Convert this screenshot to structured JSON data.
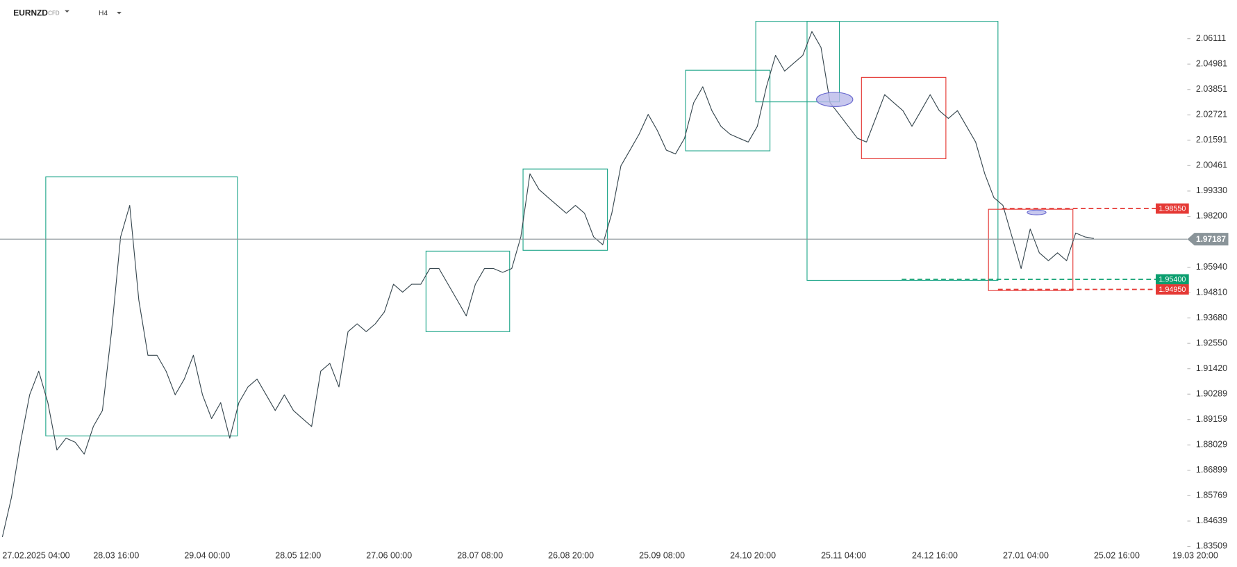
{
  "header": {
    "symbol": "EURNZD",
    "market": "CFD",
    "timeframe": "H4"
  },
  "chart_data": {
    "type": "line",
    "categories": [
      "27.02.2025  04:00",
      null,
      null,
      null,
      null,
      null,
      null,
      null,
      null,
      null,
      "28.03  16:00",
      null,
      null,
      null,
      null,
      null,
      null,
      null,
      null,
      null,
      "29.04  00:00",
      null,
      null,
      null,
      null,
      null,
      null,
      null,
      null,
      null,
      "28.05  12:00",
      null,
      null,
      null,
      null,
      null,
      null,
      null,
      null,
      null,
      "27.06  00:00",
      null,
      null,
      null,
      null,
      null,
      null,
      null,
      null,
      null,
      "28.07  08:00",
      null,
      null,
      null,
      null,
      null,
      null,
      null,
      null,
      null,
      "26.08  20:00",
      null,
      null,
      null,
      null,
      null,
      null,
      null,
      null,
      null,
      "25.09  08:00",
      null,
      null,
      null,
      null,
      null,
      null,
      null,
      null,
      null,
      "24.10  20:00",
      null,
      null,
      null,
      null,
      null,
      null,
      null,
      null,
      null,
      "25.11  04:00",
      null,
      null,
      null,
      null,
      null,
      null,
      null,
      null,
      null,
      "24.12  16:00",
      null,
      null,
      null,
      null,
      null,
      null,
      null,
      null,
      null,
      "27.01  04:00",
      null,
      null,
      null,
      null,
      null,
      null,
      null,
      null,
      null,
      "25.02  16:00",
      null,
      null,
      null,
      null,
      null,
      null,
      null,
      null,
      null,
      "19.03  20:00"
    ],
    "series": [
      {
        "name": "EURNZD",
        "color": "#37474f",
        "values": [
          1.8393,
          1.8569,
          1.8815,
          1.9026,
          1.9131,
          1.8991,
          1.878,
          1.8833,
          1.8815,
          1.8762,
          1.8885,
          1.8956,
          1.9307,
          1.9729,
          1.9869,
          1.9448,
          1.9202,
          1.9202,
          1.9131,
          1.9026,
          1.9096,
          1.9202,
          1.9026,
          1.892,
          1.8991,
          1.8833,
          1.8991,
          1.9061,
          1.9096,
          1.9026,
          1.8956,
          1.9026,
          1.8956,
          1.892,
          1.8885,
          1.9131,
          1.9166,
          1.9061,
          1.9307,
          1.9342,
          1.9307,
          1.9342,
          1.9395,
          1.9518,
          1.9483,
          1.9518,
          1.9518,
          1.9588,
          1.9588,
          1.9518,
          1.9448,
          1.9377,
          1.9518,
          1.9588,
          1.9588,
          1.9571,
          1.9588,
          1.9729,
          2.001,
          1.994,
          1.9904,
          1.9869,
          1.9834,
          1.9869,
          1.9834,
          1.9729,
          1.9694,
          1.9834,
          2.0045,
          2.0115,
          2.0186,
          2.0274,
          2.0203,
          2.0115,
          2.0098,
          2.0168,
          2.0326,
          2.0397,
          2.0291,
          2.0221,
          2.0186,
          2.0168,
          2.0151,
          2.0221,
          2.0397,
          2.0537,
          2.0467,
          2.0502,
          2.0537,
          2.0643,
          2.0572,
          2.0326,
          2.0274,
          2.0221,
          2.0168,
          2.0151,
          2.0256,
          2.0362,
          2.0326,
          2.0291,
          2.0221,
          2.0291,
          2.0362,
          2.0291,
          2.0256,
          2.0291,
          2.0221,
          2.0151,
          2.001,
          1.9904,
          1.9869,
          1.9729,
          1.9588,
          1.9764,
          1.9658,
          1.9623,
          1.9658,
          1.9623,
          1.9746,
          1.9729,
          1.9722,
          null,
          null,
          null,
          null,
          null,
          null,
          null,
          null,
          null,
          null
        ]
      }
    ],
    "ylim": [
      1.83509,
      2.0713
    ],
    "yticks": [
      1.83509,
      1.84639,
      1.85769,
      1.86899,
      1.88029,
      1.89159,
      1.90289,
      {
        "value": 1.9142,
        "label": "1.91420"
      },
      {
        "value": 1.9255,
        "label": "1.92550"
      },
      {
        "value": 1.9368,
        "label": "1.93680"
      },
      {
        "value": 1.9481,
        "label": "1.94810"
      },
      {
        "value": 1.9594,
        "label": "1.95940"
      },
      {
        "value": 1.982,
        "label": "1.98200"
      },
      {
        "value": 1.9933,
        "label": "1.99330"
      },
      2.00461,
      2.01591,
      2.02721,
      2.03851,
      2.04981,
      2.06111
    ],
    "grid": false,
    "price_lines": [
      {
        "value": 1.9855,
        "label": "1.98550",
        "color": "#e53935"
      },
      {
        "value": 1.954,
        "label": "1.95400",
        "color": "#0a9e6e"
      },
      {
        "value": 1.9495,
        "label": "1.94950",
        "color": "#e53935"
      }
    ],
    "current_price": {
      "value": 1.97187,
      "label": "1.97187",
      "color": "#8a9499"
    }
  }
}
